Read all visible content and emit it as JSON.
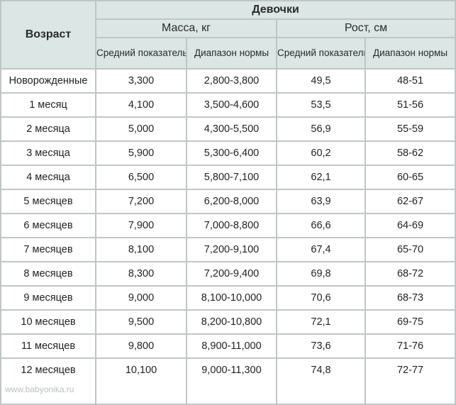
{
  "table": {
    "age_header": "Возраст",
    "group_header": "Девочки",
    "weight_header": "Масса, кг",
    "height_header": "Рост, см",
    "sub_average": "Средний показатель",
    "sub_range": "Диапазон нормы",
    "rows": [
      {
        "age": "Новорожденные",
        "w_avg": "3,300",
        "w_range": "2,800-3,800",
        "h_avg": "49,5",
        "h_range": "48-51"
      },
      {
        "age": "1 месяц",
        "w_avg": "4,100",
        "w_range": "3,500-4,600",
        "h_avg": "53,5",
        "h_range": "51-56"
      },
      {
        "age": "2 месяца",
        "w_avg": "5,000",
        "w_range": "4,300-5,500",
        "h_avg": "56,9",
        "h_range": "55-59"
      },
      {
        "age": "3 месяца",
        "w_avg": "5,900",
        "w_range": "5,300-6,400",
        "h_avg": "60,2",
        "h_range": "58-62"
      },
      {
        "age": "4 месяца",
        "w_avg": "6,500",
        "w_range": "5,800-7,100",
        "h_avg": "62,1",
        "h_range": "60-65"
      },
      {
        "age": "5 месяцев",
        "w_avg": "7,200",
        "w_range": "6,200-8,000",
        "h_avg": "63,9",
        "h_range": "62-67"
      },
      {
        "age": "6 месяцев",
        "w_avg": "7,900",
        "w_range": "7,000-8,800",
        "h_avg": "66,6",
        "h_range": "64-69"
      },
      {
        "age": "7 месяцев",
        "w_avg": "8,100",
        "w_range": "7,200-9,100",
        "h_avg": "67,4",
        "h_range": "65-70"
      },
      {
        "age": "8 месяцев",
        "w_avg": "8,300",
        "w_range": "7,200-9,400",
        "h_avg": "69,8",
        "h_range": "68-72"
      },
      {
        "age": "9 месяцев",
        "w_avg": "9,000",
        "w_range": "8,100-10,000",
        "h_avg": "70,6",
        "h_range": "68-73"
      },
      {
        "age": "10 месяцев",
        "w_avg": "9,500",
        "w_range": "8,200-10,800",
        "h_avg": "72,1",
        "h_range": "69-75"
      },
      {
        "age": "11 месяцев",
        "w_avg": "9,800",
        "w_range": "8,900-11,000",
        "h_avg": "73,6",
        "h_range": "71-76"
      },
      {
        "age": "12 месяцев",
        "w_avg": "10,100",
        "w_range": "9,000-11,300",
        "h_avg": "74,8",
        "h_range": "72-77"
      }
    ]
  },
  "watermark": "www.babyonika.ru",
  "colors": {
    "header_bg": "#dbe6e5",
    "border": "#bfc6c6",
    "watermark": "#b9c0c0"
  }
}
